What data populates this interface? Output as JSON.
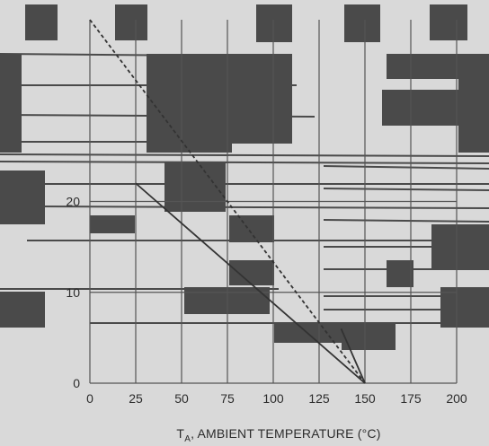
{
  "chart_data": {
    "type": "line",
    "title": "",
    "xlabel": {
      "symbol": "T",
      "subscript": "A",
      "text": ", AMBIENT TEMPERATURE (°C)"
    },
    "ylabel": "",
    "x_ticks": [
      "0",
      "25",
      "50",
      "75",
      "100",
      "125",
      "150",
      "175",
      "200"
    ],
    "xlim": [
      0,
      200
    ],
    "y_ticks": [
      "0",
      "10",
      "20"
    ],
    "ylim": [
      0,
      40
    ],
    "grid": true,
    "series": [
      {
        "x": [
          0,
          150
        ],
        "y": [
          40,
          0
        ]
      },
      {
        "x": [
          25,
          150
        ],
        "y": [
          22,
          0
        ]
      },
      {
        "x": [
          137,
          150
        ],
        "y": [
          6,
          0
        ]
      }
    ],
    "colors": {
      "background": "#d9d9d9",
      "dark_blocks": "#4a4a4a",
      "grid": "#555555",
      "line": "#333333",
      "text": "#2c2c2c"
    }
  }
}
